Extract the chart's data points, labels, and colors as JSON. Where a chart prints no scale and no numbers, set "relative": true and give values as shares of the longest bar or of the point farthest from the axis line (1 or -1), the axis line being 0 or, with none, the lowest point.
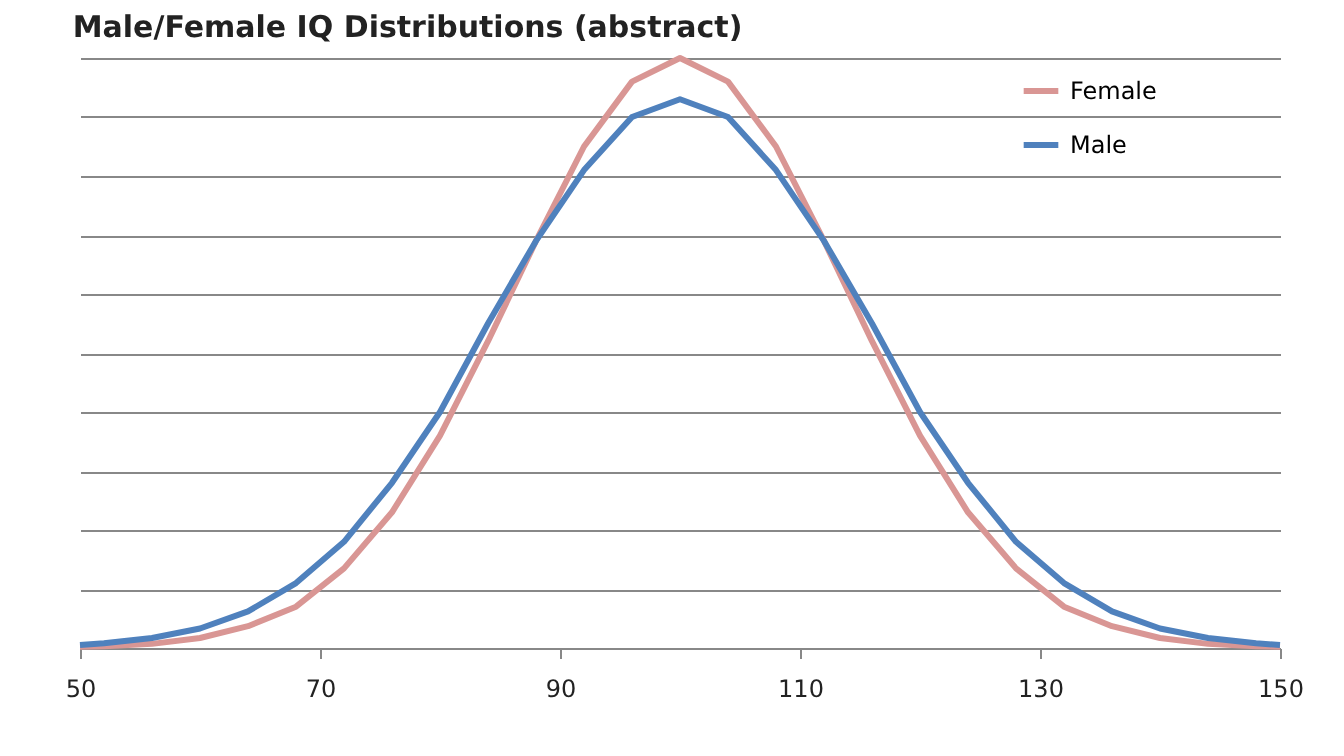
{
  "chart_data": {
    "type": "line",
    "title": "Male/Female IQ Distributions (abstract)",
    "relative": true,
    "x": [
      50,
      52,
      56,
      60,
      64,
      68,
      72,
      76,
      80,
      84,
      88,
      92,
      96,
      100,
      104,
      108,
      112,
      116,
      120,
      124,
      128,
      132,
      136,
      140,
      144,
      148,
      150
    ],
    "xlim": [
      50,
      150
    ],
    "xticks": [
      50,
      70,
      90,
      110,
      130,
      150
    ],
    "grid": "y",
    "legend": "top right",
    "series": [
      {
        "name": "Female",
        "color": "#d99694",
        "values": [
          0.002,
          0.003,
          0.007,
          0.017,
          0.037,
          0.07,
          0.135,
          0.23,
          0.36,
          0.52,
          0.69,
          0.85,
          0.96,
          1,
          0.96,
          0.85,
          0.69,
          0.52,
          0.36,
          0.23,
          0.135,
          0.07,
          0.037,
          0.017,
          0.007,
          0.003,
          0.002
        ]
      },
      {
        "name": "Male",
        "color": "#4f81bd",
        "values": [
          0.005,
          0.008,
          0.017,
          0.033,
          0.062,
          0.11,
          0.18,
          0.28,
          0.4,
          0.55,
          0.69,
          0.81,
          0.9,
          0.93,
          0.9,
          0.81,
          0.69,
          0.55,
          0.4,
          0.28,
          0.18,
          0.11,
          0.062,
          0.033,
          0.017,
          0.008,
          0.005
        ]
      }
    ]
  }
}
